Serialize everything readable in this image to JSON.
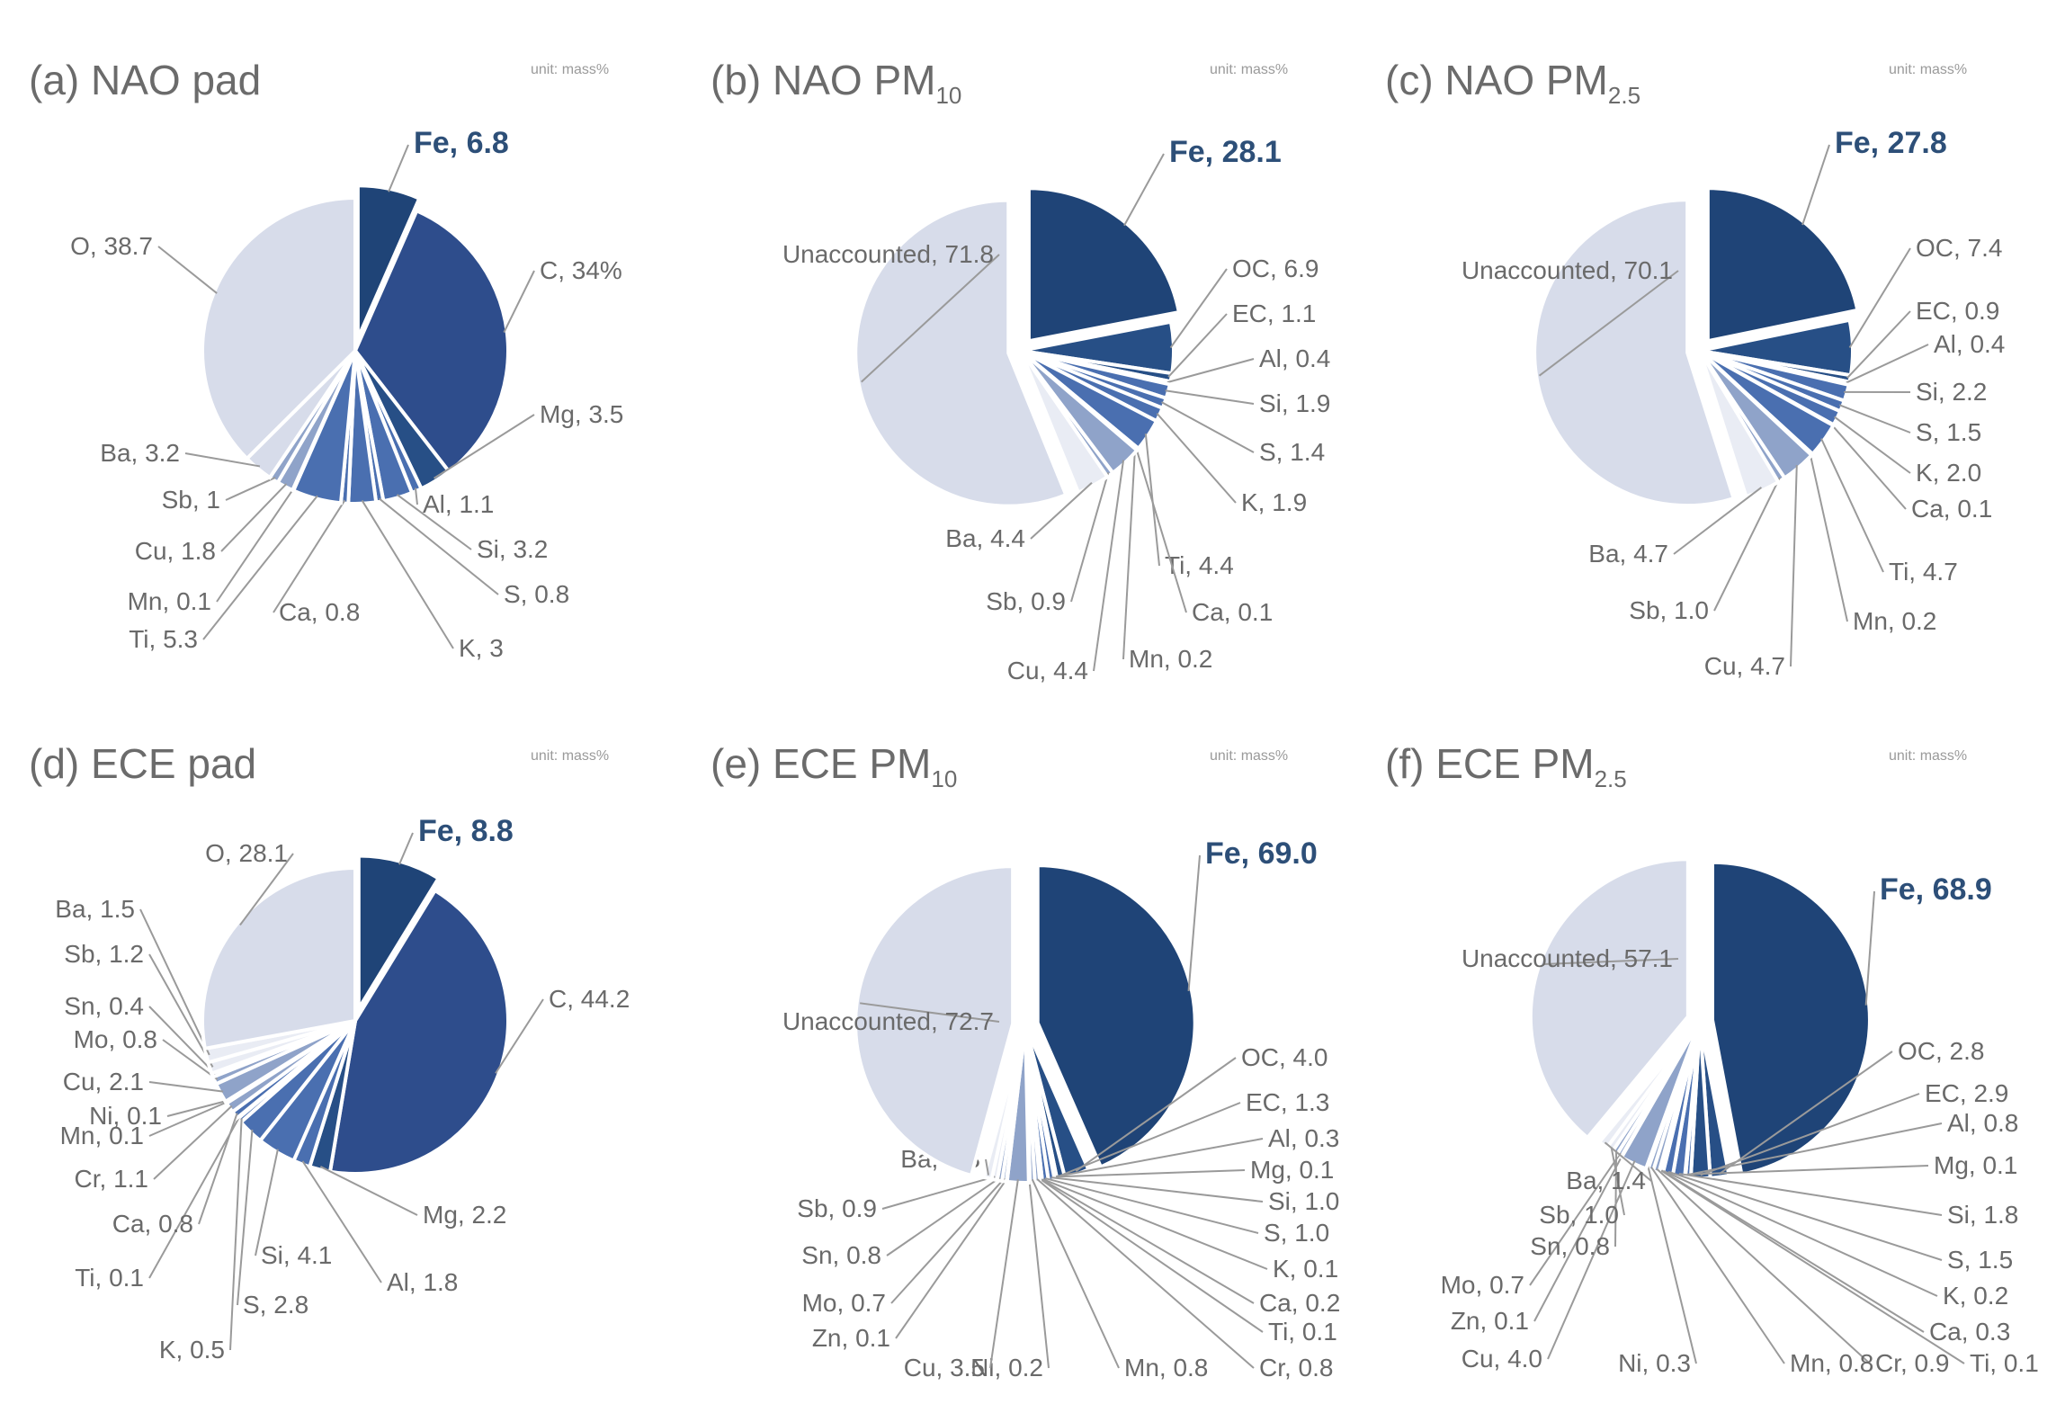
{
  "colors": {
    "fe": "#1f4477",
    "c": "#2e4d8c",
    "dark": "#274f86",
    "medium": "#4a6fb0",
    "light": "#8fa3c9",
    "pale": "#d7dcea",
    "lightest": "#e9ecf4",
    "leader": "#9a9a9a"
  },
  "chart_data": [
    {
      "type": "pie",
      "panel": "a",
      "title": "(a) NAO pad",
      "unit_label": "unit: mass%",
      "slices": [
        {
          "label": "Fe",
          "display": "Fe, 6.8",
          "value": 6.8,
          "color": "fe",
          "emph": true,
          "explode": true
        },
        {
          "label": "C",
          "display": "C, 34%",
          "value": 34,
          "color": "c"
        },
        {
          "label": "Mg",
          "display": "Mg, 3.5",
          "value": 3.5,
          "color": "dark"
        },
        {
          "label": "Al",
          "display": "Al, 1.1",
          "value": 1.1,
          "color": "medium"
        },
        {
          "label": "Si",
          "display": "Si, 3.2",
          "value": 3.2,
          "color": "medium"
        },
        {
          "label": "S",
          "display": "S, 0.8",
          "value": 0.8,
          "color": "medium"
        },
        {
          "label": "K",
          "display": "K, 3",
          "value": 3,
          "color": "medium"
        },
        {
          "label": "Ca",
          "display": "Ca, 0.8",
          "value": 0.8,
          "color": "medium"
        },
        {
          "label": "Ti",
          "display": "Ti, 5.3",
          "value": 5.3,
          "color": "medium"
        },
        {
          "label": "Mn",
          "display": "Mn, 0.1",
          "value": 0.1,
          "color": "light"
        },
        {
          "label": "Cu",
          "display": "Cu, 1.8",
          "value": 1.8,
          "color": "light"
        },
        {
          "label": "Sb",
          "display": "Sb, 1",
          "value": 1,
          "color": "light"
        },
        {
          "label": "Ba",
          "display": "Ba, 3.2",
          "value": 3.2,
          "color": "pale"
        },
        {
          "label": "O",
          "display": "O, 38.7",
          "value": 38.7,
          "color": "pale"
        }
      ]
    },
    {
      "type": "pie",
      "panel": "b",
      "title": "(b) NAO PM",
      "title_sub": "10",
      "unit_label": "unit: mass%",
      "slices": [
        {
          "label": "Fe",
          "display": "Fe, 28.1",
          "value": 28.1,
          "color": "fe",
          "emph": true,
          "explode": true
        },
        {
          "label": "OC",
          "display": "OC, 6.9",
          "value": 6.9,
          "color": "dark"
        },
        {
          "label": "EC",
          "display": "EC, 1.1",
          "value": 1.1,
          "color": "dark"
        },
        {
          "label": "Al",
          "display": "Al, 0.4",
          "value": 0.4,
          "color": "medium"
        },
        {
          "label": "Si",
          "display": "Si, 1.9",
          "value": 1.9,
          "color": "medium"
        },
        {
          "label": "S",
          "display": "S, 1.4",
          "value": 1.4,
          "color": "medium"
        },
        {
          "label": "K",
          "display": "K, 1.9",
          "value": 1.9,
          "color": "medium"
        },
        {
          "label": "Ti",
          "display": "Ti, 4.4",
          "value": 4.4,
          "color": "medium"
        },
        {
          "label": "Ca",
          "display": "Ca, 0.1",
          "value": 0.1,
          "color": "light"
        },
        {
          "label": "Mn",
          "display": "Mn, 0.2",
          "value": 0.2,
          "color": "light"
        },
        {
          "label": "Cu",
          "display": "Cu, 4.4",
          "value": 4.4,
          "color": "light"
        },
        {
          "label": "Sb",
          "display": "Sb, 0.9",
          "value": 0.9,
          "color": "light"
        },
        {
          "label": "Ba",
          "display": "Ba, 4.4",
          "value": 4.4,
          "color": "lightest"
        },
        {
          "label": "Unaccounted",
          "display": "Unaccounted, 71.8",
          "value": 71.8,
          "color": "pale",
          "explode": true
        }
      ]
    },
    {
      "type": "pie",
      "panel": "c",
      "title": "(c) NAO PM",
      "title_sub": "2.5",
      "unit_label": "unit: mass%",
      "slices": [
        {
          "label": "Fe",
          "display": "Fe, 27.8",
          "value": 27.8,
          "color": "fe",
          "emph": true,
          "explode": true
        },
        {
          "label": "OC",
          "display": "OC, 7.4",
          "value": 7.4,
          "color": "dark"
        },
        {
          "label": "EC",
          "display": "EC, 0.9",
          "value": 0.9,
          "color": "dark"
        },
        {
          "label": "Al",
          "display": "Al, 0.4",
          "value": 0.4,
          "color": "medium"
        },
        {
          "label": "Si",
          "display": "Si, 2.2",
          "value": 2.2,
          "color": "medium"
        },
        {
          "label": "S",
          "display": "S, 1.5",
          "value": 1.5,
          "color": "medium"
        },
        {
          "label": "K",
          "display": "K, 2.0",
          "value": 2.0,
          "color": "medium"
        },
        {
          "label": "Ca",
          "display": "Ca, 0.1",
          "value": 0.1,
          "color": "medium"
        },
        {
          "label": "Ti",
          "display": "Ti, 4.7",
          "value": 4.7,
          "color": "medium"
        },
        {
          "label": "Mn",
          "display": "Mn, 0.2",
          "value": 0.2,
          "color": "light"
        },
        {
          "label": "Cu",
          "display": "Cu, 4.7",
          "value": 4.7,
          "color": "light"
        },
        {
          "label": "Sb",
          "display": "Sb, 1.0",
          "value": 1.0,
          "color": "light"
        },
        {
          "label": "Ba",
          "display": "Ba, 4.7",
          "value": 4.7,
          "color": "lightest"
        },
        {
          "label": "Unaccounted",
          "display": "Unaccounted, 70.1",
          "value": 70.1,
          "color": "pale",
          "explode": true
        }
      ]
    },
    {
      "type": "pie",
      "panel": "d",
      "title": "(d) ECE pad",
      "unit_label": "unit: mass%",
      "slices": [
        {
          "label": "Fe",
          "display": "Fe, 8.8",
          "value": 8.8,
          "color": "fe",
          "emph": true,
          "explode": true
        },
        {
          "label": "C",
          "display": "C, 44.2",
          "value": 44.2,
          "color": "c"
        },
        {
          "label": "Mg",
          "display": "Mg, 2.2",
          "value": 2.2,
          "color": "dark"
        },
        {
          "label": "Al",
          "display": "Al, 1.8",
          "value": 1.8,
          "color": "medium"
        },
        {
          "label": "Si",
          "display": "Si, 4.1",
          "value": 4.1,
          "color": "medium"
        },
        {
          "label": "S",
          "display": "S, 2.8",
          "value": 2.8,
          "color": "medium"
        },
        {
          "label": "K",
          "display": "K, 0.5",
          "value": 0.5,
          "color": "medium"
        },
        {
          "label": "Ti",
          "display": "Ti, 0.1",
          "value": 0.1,
          "color": "medium"
        },
        {
          "label": "Ca",
          "display": "Ca, 0.8",
          "value": 0.8,
          "color": "medium"
        },
        {
          "label": "Cr",
          "display": "Cr, 1.1",
          "value": 1.1,
          "color": "light"
        },
        {
          "label": "Mn",
          "display": "Mn, 0.1",
          "value": 0.1,
          "color": "light"
        },
        {
          "label": "Ni",
          "display": "Ni, 0.1",
          "value": 0.1,
          "color": "light"
        },
        {
          "label": "Cu",
          "display": "Cu, 2.1",
          "value": 2.1,
          "color": "light"
        },
        {
          "label": "Mo",
          "display": "Mo, 0.8",
          "value": 0.8,
          "color": "light"
        },
        {
          "label": "Sn",
          "display": "Sn, 0.4",
          "value": 0.4,
          "color": "light"
        },
        {
          "label": "Sb",
          "display": "Sb, 1.2",
          "value": 1.2,
          "color": "lightest"
        },
        {
          "label": "Ba",
          "display": "Ba, 1.5",
          "value": 1.5,
          "color": "lightest"
        },
        {
          "label": "O",
          "display": "O, 28.1",
          "value": 28.1,
          "color": "pale"
        }
      ]
    },
    {
      "type": "pie",
      "panel": "e",
      "title": "(e) ECE PM",
      "title_sub": "10",
      "unit_label": "unit: mass%",
      "slices": [
        {
          "label": "Fe",
          "display": "Fe, 69.0",
          "value": 69.0,
          "color": "fe",
          "emph": true,
          "explode": true
        },
        {
          "label": "OC",
          "display": "OC, 4.0",
          "value": 4.0,
          "color": "dark"
        },
        {
          "label": "EC",
          "display": "EC, 1.3",
          "value": 1.3,
          "color": "dark"
        },
        {
          "label": "Al",
          "display": "Al, 0.3",
          "value": 0.3,
          "color": "medium"
        },
        {
          "label": "Mg",
          "display": "Mg, 0.1",
          "value": 0.1,
          "color": "medium"
        },
        {
          "label": "Si",
          "display": "Si, 1.0",
          "value": 1.0,
          "color": "medium"
        },
        {
          "label": "S",
          "display": "S, 1.0",
          "value": 1.0,
          "color": "medium"
        },
        {
          "label": "K",
          "display": "K, 0.1",
          "value": 0.1,
          "color": "medium"
        },
        {
          "label": "Ca",
          "display": "Ca, 0.2",
          "value": 0.2,
          "color": "medium"
        },
        {
          "label": "Ti",
          "display": "Ti, 0.1",
          "value": 0.1,
          "color": "medium"
        },
        {
          "label": "Cr",
          "display": "Cr, 0.8",
          "value": 0.8,
          "color": "light"
        },
        {
          "label": "Mn",
          "display": "Mn, 0.8",
          "value": 0.8,
          "color": "light"
        },
        {
          "label": "Ni",
          "display": "Ni, 0.2",
          "value": 0.2,
          "color": "light"
        },
        {
          "label": "Cu",
          "display": "Cu, 3.5",
          "value": 3.5,
          "color": "light"
        },
        {
          "label": "Zn",
          "display": "Zn, 0.1",
          "value": 0.1,
          "color": "light"
        },
        {
          "label": "Mo",
          "display": "Mo, 0.7",
          "value": 0.7,
          "color": "light"
        },
        {
          "label": "Sn",
          "display": "Sn, 0.8",
          "value": 0.8,
          "color": "light"
        },
        {
          "label": "Sb",
          "display": "Sb, 0.9",
          "value": 0.9,
          "color": "lightest"
        },
        {
          "label": "Ba",
          "display": "Ba, 1.3",
          "value": 1.3,
          "color": "lightest"
        },
        {
          "label": "Unaccounted",
          "display": "Unaccounted, 72.7",
          "value": 72.7,
          "color": "pale",
          "explode": true
        }
      ]
    },
    {
      "type": "pie",
      "panel": "f",
      "title": "(f) ECE PM",
      "title_sub": "2.5",
      "unit_label": "unit: mass%",
      "slices": [
        {
          "label": "Fe",
          "display": "Fe, 68.9",
          "value": 68.9,
          "color": "fe",
          "emph": true,
          "explode": true
        },
        {
          "label": "OC",
          "display": "OC, 2.8",
          "value": 2.8,
          "color": "dark"
        },
        {
          "label": "EC",
          "display": "EC, 2.9",
          "value": 2.9,
          "color": "dark"
        },
        {
          "label": "Al",
          "display": "Al, 0.8",
          "value": 0.8,
          "color": "medium"
        },
        {
          "label": "Mg",
          "display": "Mg, 0.1",
          "value": 0.1,
          "color": "medium"
        },
        {
          "label": "Si",
          "display": "Si, 1.8",
          "value": 1.8,
          "color": "medium"
        },
        {
          "label": "S",
          "display": "S, 1.5",
          "value": 1.5,
          "color": "medium"
        },
        {
          "label": "K",
          "display": "K, 0.2",
          "value": 0.2,
          "color": "medium"
        },
        {
          "label": "Ca",
          "display": "Ca, 0.3",
          "value": 0.3,
          "color": "medium"
        },
        {
          "label": "Ti",
          "display": "Ti, 0.1",
          "value": 0.1,
          "color": "medium"
        },
        {
          "label": "Cr",
          "display": "Cr, 0.9",
          "value": 0.9,
          "color": "light"
        },
        {
          "label": "Mn",
          "display": "Mn, 0.8",
          "value": 0.8,
          "color": "light"
        },
        {
          "label": "Ni",
          "display": "Ni, 0.3",
          "value": 0.3,
          "color": "light"
        },
        {
          "label": "Cu",
          "display": "Cu, 4.0",
          "value": 4.0,
          "color": "light"
        },
        {
          "label": "Zn",
          "display": "Zn, 0.1",
          "value": 0.1,
          "color": "light"
        },
        {
          "label": "Mo",
          "display": "Mo, 0.7",
          "value": 0.7,
          "color": "light"
        },
        {
          "label": "Sn",
          "display": "Sn, 0.8",
          "value": 0.8,
          "color": "light"
        },
        {
          "label": "Sb",
          "display": "Sb, 1.0",
          "value": 1.0,
          "color": "lightest"
        },
        {
          "label": "Ba",
          "display": "Ba, 1.4",
          "value": 1.4,
          "color": "lightest"
        },
        {
          "label": "Unaccounted",
          "display": "Unaccounted, 57.1",
          "value": 57.1,
          "color": "pale",
          "explode": true
        }
      ]
    }
  ]
}
